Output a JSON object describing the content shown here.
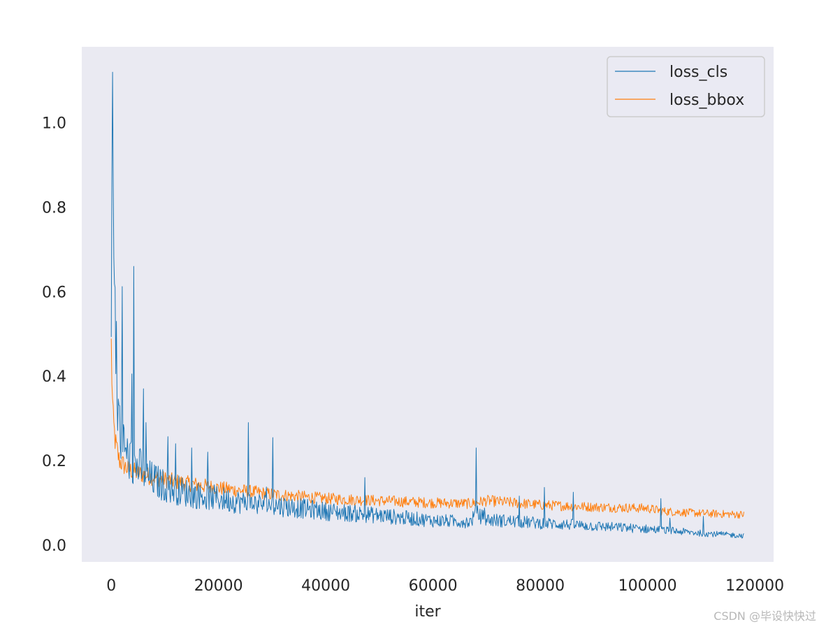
{
  "chart_data": {
    "type": "line",
    "title": "",
    "xlabel": "iter",
    "ylabel": "",
    "xlim": [
      -5500,
      123500
    ],
    "ylim": [
      -0.04,
      1.18
    ],
    "xticks": [
      0,
      20000,
      40000,
      60000,
      80000,
      100000,
      120000
    ],
    "xtick_labels": [
      "0",
      "20000",
      "40000",
      "60000",
      "80000",
      "100000",
      "120000"
    ],
    "yticks": [
      0.0,
      0.2,
      0.4,
      0.6,
      0.8,
      1.0
    ],
    "ytick_labels": [
      "0.0",
      "0.2",
      "0.4",
      "0.6",
      "0.8",
      "1.0"
    ],
    "grid": false,
    "legend_position": "top-right",
    "background": "#eaeaf2",
    "series": [
      {
        "name": "loss_cls",
        "color": "#1f77b4",
        "x": [
          0,
          200,
          500,
          800,
          1200,
          2000,
          3000,
          4200,
          5500,
          7000,
          10000,
          15000,
          20000,
          25000,
          30000,
          40000,
          50000,
          60000,
          67000,
          68000,
          70000,
          80000,
          90000,
          100000,
          103000,
          110000,
          118000
        ],
        "y": [
          0.45,
          1.12,
          0.55,
          0.4,
          0.3,
          0.25,
          0.21,
          0.19,
          0.18,
          0.16,
          0.14,
          0.12,
          0.11,
          0.1,
          0.095,
          0.08,
          0.07,
          0.058,
          0.055,
          0.075,
          0.06,
          0.052,
          0.045,
          0.038,
          0.035,
          0.028,
          0.022
        ],
        "spikes": [
          [
            200,
            1.12
          ],
          [
            500,
            0.68
          ],
          [
            700,
            0.61
          ],
          [
            900,
            0.53
          ],
          [
            1500,
            0.33
          ],
          [
            4200,
            0.66
          ],
          [
            6000,
            0.37
          ],
          [
            6500,
            0.29
          ],
          [
            12000,
            0.24
          ],
          [
            15000,
            0.23
          ],
          [
            18000,
            0.22
          ],
          [
            25500,
            0.29
          ],
          [
            68000,
            0.23
          ],
          [
            102500,
            0.11
          ]
        ]
      },
      {
        "name": "loss_bbox",
        "color": "#ff7f0e",
        "x": [
          0,
          300,
          800,
          1500,
          3000,
          5000,
          8000,
          12000,
          20000,
          30000,
          40000,
          50000,
          60000,
          67000,
          70000,
          80000,
          90000,
          100000,
          103000,
          110000,
          118000
        ],
        "y": [
          0.47,
          0.3,
          0.24,
          0.2,
          0.18,
          0.17,
          0.16,
          0.15,
          0.135,
          0.12,
          0.11,
          0.105,
          0.1,
          0.098,
          0.105,
          0.095,
          0.09,
          0.087,
          0.08,
          0.075,
          0.072
        ]
      }
    ]
  },
  "watermark": "CSDN @毕设快快过"
}
